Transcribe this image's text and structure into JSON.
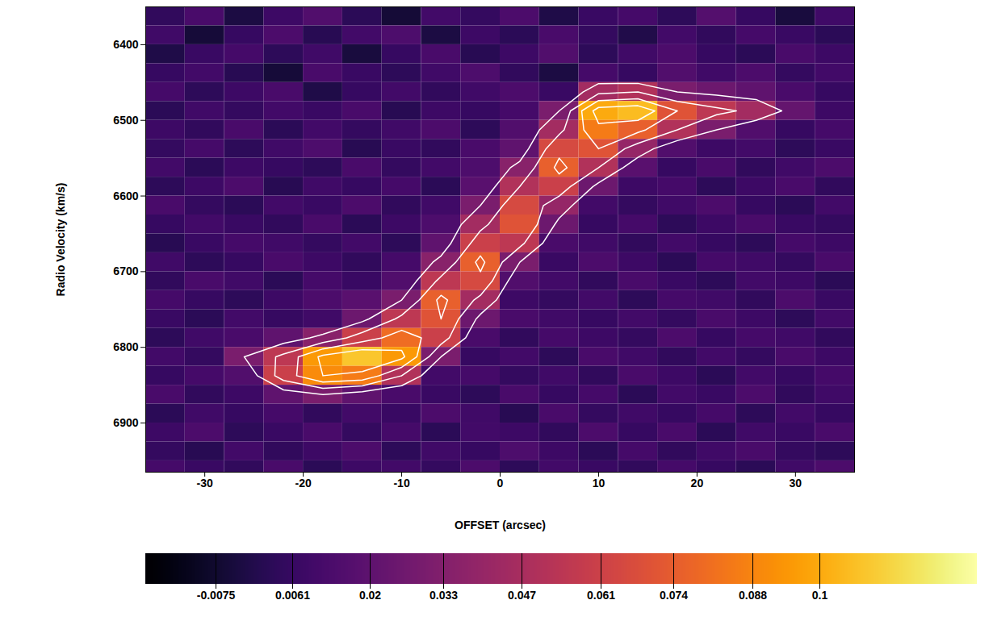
{
  "chart_data": {
    "type": "heatmap",
    "x_label": "OFFSET (arcsec)",
    "y_label": "Radio Velocity (km/s)",
    "xlim": [
      -36,
      36
    ],
    "ylim": [
      6350,
      6965
    ],
    "xticks": [
      -30,
      -20,
      -10,
      0,
      10,
      20,
      30
    ],
    "yticks": [
      6400,
      6500,
      6600,
      6700,
      6800,
      6900
    ],
    "color": "inferno",
    "colorbar_range": [
      -0.02,
      0.128
    ],
    "colorbar_ticks": [
      -0.0075,
      0.0061,
      0.02,
      0.033,
      0.047,
      0.061,
      0.074,
      0.088,
      0.1
    ],
    "contour_levels": [
      0.03,
      0.05,
      0.07,
      0.09
    ],
    "cells": {
      "x_bins": [
        -36,
        -32,
        -28,
        -24,
        -20,
        -16,
        -12,
        -8,
        -4,
        0,
        4,
        8,
        12,
        16,
        20,
        24,
        28,
        32,
        36
      ],
      "y_bins": [
        6350,
        6375,
        6400,
        6425,
        6450,
        6475,
        6500,
        6525,
        6550,
        6575,
        6600,
        6625,
        6650,
        6675,
        6700,
        6725,
        6750,
        6775,
        6800,
        6825,
        6850,
        6875,
        6900,
        6925,
        6950,
        6975
      ],
      "values": [
        [
          0.004,
          0.012,
          -0.003,
          0.008,
          0.015,
          0.002,
          -0.006,
          0.01,
          0.005,
          0.013,
          -0.002,
          0.007,
          0.011,
          0.003,
          0.016,
          0.006,
          -0.004,
          0.009
        ],
        [
          0.009,
          -0.005,
          0.006,
          0.013,
          0.001,
          0.01,
          0.014,
          -0.003,
          0.008,
          0.002,
          0.012,
          0.005,
          -0.001,
          0.01,
          0.004,
          0.011,
          0.007,
          0.002
        ],
        [
          -0.002,
          0.007,
          0.011,
          0.003,
          0.009,
          -0.004,
          0.006,
          0.012,
          0.001,
          0.008,
          0.015,
          0.003,
          0.009,
          0.013,
          0.006,
          0.002,
          0.012,
          0.008
        ],
        [
          0.006,
          0.01,
          0.001,
          -0.005,
          0.012,
          0.007,
          0.003,
          0.009,
          0.014,
          0.004,
          -0.003,
          0.011,
          0.006,
          0.015,
          0.009,
          0.013,
          0.005,
          0.01
        ],
        [
          0.011,
          0.003,
          0.008,
          0.012,
          -0.002,
          0.006,
          0.01,
          0.004,
          0.009,
          0.013,
          0.007,
          0.045,
          0.05,
          0.03,
          0.025,
          0.02,
          0.012,
          0.006
        ],
        [
          0.002,
          0.009,
          0.005,
          0.01,
          0.007,
          0.012,
          0.001,
          0.008,
          0.006,
          0.011,
          0.03,
          0.1,
          0.105,
          0.07,
          0.055,
          0.045,
          0.022,
          0.008
        ],
        [
          0.008,
          0.004,
          0.012,
          0.002,
          0.01,
          0.005,
          0.009,
          0.013,
          0.003,
          0.015,
          0.045,
          0.085,
          0.075,
          0.05,
          0.03,
          0.015,
          0.006,
          0.011
        ],
        [
          0.005,
          0.011,
          0.003,
          0.009,
          0.014,
          0.001,
          0.007,
          0.004,
          0.012,
          0.02,
          0.065,
          0.07,
          0.04,
          0.015,
          0.008,
          0.01,
          0.003,
          0.007
        ],
        [
          0.01,
          0.002,
          0.008,
          0.006,
          0.003,
          0.012,
          0.005,
          0.01,
          0.014,
          0.035,
          0.075,
          0.05,
          0.018,
          0.006,
          0.012,
          0.004,
          0.009,
          0.013
        ],
        [
          0.003,
          0.008,
          0.013,
          0.001,
          0.009,
          0.006,
          0.011,
          0.002,
          0.018,
          0.05,
          0.06,
          0.025,
          0.008,
          0.011,
          0.003,
          0.008,
          0.012,
          0.004
        ],
        [
          0.012,
          0.005,
          0.002,
          0.01,
          0.007,
          0.013,
          0.004,
          0.009,
          0.03,
          0.065,
          0.04,
          0.01,
          0.005,
          0.009,
          0.013,
          0.006,
          0.002,
          0.01
        ],
        [
          0.006,
          0.01,
          0.007,
          0.004,
          0.012,
          0.002,
          0.008,
          0.014,
          0.045,
          0.07,
          0.025,
          0.006,
          0.011,
          0.003,
          0.008,
          0.012,
          0.007,
          0.005
        ],
        [
          0.001,
          0.007,
          0.011,
          0.009,
          0.005,
          0.01,
          0.003,
          0.02,
          0.06,
          0.055,
          0.012,
          0.009,
          0.004,
          0.01,
          0.006,
          0.003,
          0.011,
          0.008
        ],
        [
          0.009,
          0.003,
          0.006,
          0.012,
          0.008,
          0.004,
          0.011,
          0.035,
          0.075,
          0.03,
          0.007,
          0.013,
          0.008,
          0.002,
          0.011,
          0.009,
          0.005,
          0.012
        ],
        [
          0.004,
          0.012,
          0.009,
          0.002,
          0.011,
          0.007,
          0.015,
          0.055,
          0.065,
          0.015,
          0.01,
          0.004,
          0.012,
          0.007,
          0.003,
          0.01,
          0.008,
          0.002
        ],
        [
          0.011,
          0.006,
          0.003,
          0.008,
          0.013,
          0.018,
          0.03,
          0.075,
          0.045,
          0.008,
          0.005,
          0.01,
          0.003,
          0.011,
          0.009,
          0.004,
          0.013,
          0.007
        ],
        [
          0.007,
          0.002,
          0.01,
          0.006,
          0.009,
          0.025,
          0.055,
          0.07,
          0.025,
          0.012,
          0.009,
          0.006,
          0.01,
          0.005,
          0.012,
          0.008,
          0.003,
          0.01
        ],
        [
          0.003,
          0.009,
          0.012,
          0.02,
          0.035,
          0.06,
          0.08,
          0.06,
          0.012,
          0.004,
          0.011,
          0.008,
          0.005,
          0.013,
          0.006,
          0.011,
          0.009,
          0.004
        ],
        [
          0.01,
          0.005,
          0.03,
          0.055,
          0.095,
          0.108,
          0.095,
          0.03,
          0.006,
          0.01,
          0.003,
          0.012,
          0.009,
          0.004,
          0.01,
          0.005,
          0.012,
          0.008
        ],
        [
          0.006,
          0.011,
          0.015,
          0.06,
          0.09,
          0.085,
          0.05,
          0.01,
          0.011,
          0.005,
          0.009,
          0.004,
          0.012,
          0.008,
          0.002,
          0.01,
          0.006,
          0.011
        ],
        [
          0.012,
          0.004,
          0.008,
          0.02,
          0.03,
          0.02,
          0.012,
          0.007,
          0.003,
          0.012,
          0.006,
          0.011,
          0.002,
          0.01,
          0.007,
          0.013,
          0.004,
          0.009
        ],
        [
          0.002,
          0.009,
          0.006,
          0.011,
          0.004,
          0.01,
          0.007,
          0.013,
          0.009,
          0.001,
          0.012,
          0.005,
          0.009,
          0.006,
          0.011,
          0.003,
          0.01,
          0.006
        ],
        [
          0.008,
          0.013,
          0.003,
          0.007,
          0.012,
          0.005,
          0.011,
          0.002,
          0.01,
          0.008,
          0.004,
          0.013,
          0.006,
          0.012,
          0.002,
          0.009,
          0.007,
          0.012
        ],
        [
          0.005,
          0.001,
          0.01,
          0.004,
          0.008,
          0.013,
          0.003,
          0.009,
          0.006,
          0.014,
          0.008,
          0.002,
          0.011,
          0.004,
          0.009,
          0.012,
          0.005,
          0.003
        ],
        [
          0.011,
          0.007,
          0.004,
          0.012,
          0.002,
          0.008,
          0.01,
          0.005,
          0.013,
          0.003,
          0.01,
          0.007,
          0.004,
          0.011,
          0.006,
          0.002,
          0.009,
          0.013
        ]
      ]
    }
  }
}
